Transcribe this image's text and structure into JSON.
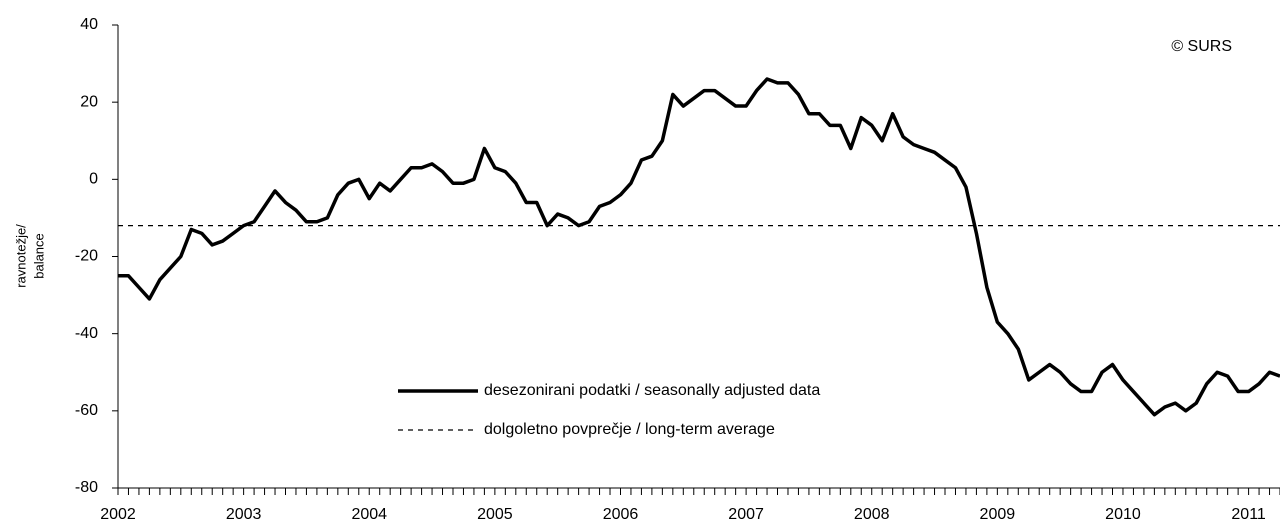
{
  "chart_data": {
    "type": "line",
    "y_label": [
      "ravnotežje/",
      "balance"
    ],
    "annotation": "© SURS",
    "categories": [
      "2002",
      null,
      null,
      null,
      null,
      null,
      null,
      null,
      null,
      null,
      null,
      null,
      "2003",
      null,
      null,
      null,
      null,
      null,
      null,
      null,
      null,
      null,
      null,
      null,
      "2004",
      null,
      null,
      null,
      null,
      null,
      null,
      null,
      null,
      null,
      null,
      null,
      "2005",
      null,
      null,
      null,
      null,
      null,
      null,
      null,
      null,
      null,
      null,
      null,
      "2006",
      null,
      null,
      null,
      null,
      null,
      null,
      null,
      null,
      null,
      null,
      null,
      "2007",
      null,
      null,
      null,
      null,
      null,
      null,
      null,
      null,
      null,
      null,
      null,
      "2008",
      null,
      null,
      null,
      null,
      null,
      null,
      null,
      null,
      null,
      null,
      null,
      "2009",
      null,
      null,
      null,
      null,
      null,
      null,
      null,
      null,
      null,
      null,
      null,
      "2010",
      null,
      null,
      null,
      null,
      null,
      null,
      null,
      null,
      null,
      null,
      null,
      "2011",
      null,
      null,
      null
    ],
    "series": [
      {
        "name": "desezonirani podatki / seasonally adjusted data",
        "color": "#000000",
        "values": [
          -25,
          -25,
          -28,
          -31,
          -26,
          -23,
          -20,
          -13,
          -14,
          -17,
          -16,
          -14,
          -12,
          -11,
          -7,
          -3,
          -6,
          -8,
          -11,
          -11,
          -10,
          -4,
          -1,
          0,
          -5,
          -1,
          -3,
          0,
          3,
          3,
          4,
          2,
          -1,
          -1,
          0,
          8,
          3,
          2,
          -1,
          -6,
          -6,
          -12,
          -9,
          -10,
          -12,
          -11,
          -7,
          -6,
          -4,
          -1,
          5,
          6,
          10,
          22,
          19,
          21,
          23,
          23,
          21,
          19,
          19,
          23,
          26,
          25,
          25,
          22,
          17,
          17,
          14,
          14,
          8,
          16,
          14,
          10,
          17,
          11,
          9,
          8,
          7,
          5,
          3,
          -2,
          -14,
          -28,
          -37,
          -40,
          -44,
          -52,
          -50,
          -48,
          -50,
          -53,
          -55,
          -55,
          -50,
          -48,
          -52,
          -55,
          -58,
          -61,
          -59,
          -58,
          -60,
          -58,
          -53,
          -50,
          -51,
          -55,
          -55,
          -53,
          -50,
          -51
        ]
      }
    ],
    "reference_line": {
      "name": "dolgoletno povprečje / long-term average",
      "value": -12,
      "color": "#000000"
    },
    "ylim": [
      -80,
      40
    ],
    "yticks": [
      -80,
      -60,
      -40,
      -20,
      0,
      20,
      40
    ],
    "grid": false
  }
}
